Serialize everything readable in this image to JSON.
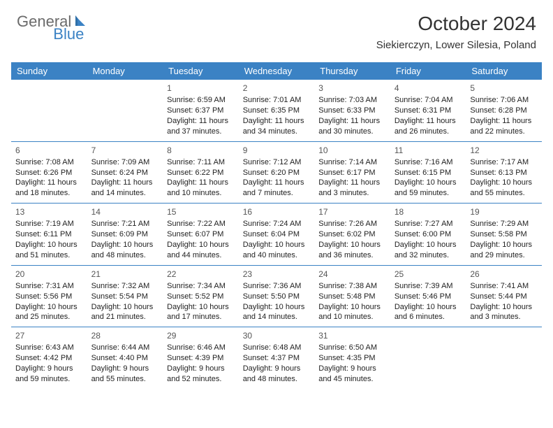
{
  "brand": {
    "part1": "General",
    "part2": "Blue"
  },
  "title": "October 2024",
  "location": "Siekierczyn, Lower Silesia, Poland",
  "colors": {
    "header_bg": "#3b82c4",
    "header_text": "#ffffff",
    "body_text": "#222222",
    "border": "#3b82c4",
    "logo_gray": "#6b6b6b",
    "logo_blue": "#3b82c4",
    "background": "#ffffff"
  },
  "fonts": {
    "base_family": "Arial",
    "title_size_pt": 21,
    "location_size_pt": 11,
    "dayhead_size_pt": 10,
    "cell_size_pt": 8
  },
  "day_headers": [
    "Sunday",
    "Monday",
    "Tuesday",
    "Wednesday",
    "Thursday",
    "Friday",
    "Saturday"
  ],
  "weeks": [
    [
      null,
      null,
      {
        "n": "1",
        "sunrise": "Sunrise: 6:59 AM",
        "sunset": "Sunset: 6:37 PM",
        "daylight": "Daylight: 11 hours and 37 minutes."
      },
      {
        "n": "2",
        "sunrise": "Sunrise: 7:01 AM",
        "sunset": "Sunset: 6:35 PM",
        "daylight": "Daylight: 11 hours and 34 minutes."
      },
      {
        "n": "3",
        "sunrise": "Sunrise: 7:03 AM",
        "sunset": "Sunset: 6:33 PM",
        "daylight": "Daylight: 11 hours and 30 minutes."
      },
      {
        "n": "4",
        "sunrise": "Sunrise: 7:04 AM",
        "sunset": "Sunset: 6:31 PM",
        "daylight": "Daylight: 11 hours and 26 minutes."
      },
      {
        "n": "5",
        "sunrise": "Sunrise: 7:06 AM",
        "sunset": "Sunset: 6:28 PM",
        "daylight": "Daylight: 11 hours and 22 minutes."
      }
    ],
    [
      {
        "n": "6",
        "sunrise": "Sunrise: 7:08 AM",
        "sunset": "Sunset: 6:26 PM",
        "daylight": "Daylight: 11 hours and 18 minutes."
      },
      {
        "n": "7",
        "sunrise": "Sunrise: 7:09 AM",
        "sunset": "Sunset: 6:24 PM",
        "daylight": "Daylight: 11 hours and 14 minutes."
      },
      {
        "n": "8",
        "sunrise": "Sunrise: 7:11 AM",
        "sunset": "Sunset: 6:22 PM",
        "daylight": "Daylight: 11 hours and 10 minutes."
      },
      {
        "n": "9",
        "sunrise": "Sunrise: 7:12 AM",
        "sunset": "Sunset: 6:20 PM",
        "daylight": "Daylight: 11 hours and 7 minutes."
      },
      {
        "n": "10",
        "sunrise": "Sunrise: 7:14 AM",
        "sunset": "Sunset: 6:17 PM",
        "daylight": "Daylight: 11 hours and 3 minutes."
      },
      {
        "n": "11",
        "sunrise": "Sunrise: 7:16 AM",
        "sunset": "Sunset: 6:15 PM",
        "daylight": "Daylight: 10 hours and 59 minutes."
      },
      {
        "n": "12",
        "sunrise": "Sunrise: 7:17 AM",
        "sunset": "Sunset: 6:13 PM",
        "daylight": "Daylight: 10 hours and 55 minutes."
      }
    ],
    [
      {
        "n": "13",
        "sunrise": "Sunrise: 7:19 AM",
        "sunset": "Sunset: 6:11 PM",
        "daylight": "Daylight: 10 hours and 51 minutes."
      },
      {
        "n": "14",
        "sunrise": "Sunrise: 7:21 AM",
        "sunset": "Sunset: 6:09 PM",
        "daylight": "Daylight: 10 hours and 48 minutes."
      },
      {
        "n": "15",
        "sunrise": "Sunrise: 7:22 AM",
        "sunset": "Sunset: 6:07 PM",
        "daylight": "Daylight: 10 hours and 44 minutes."
      },
      {
        "n": "16",
        "sunrise": "Sunrise: 7:24 AM",
        "sunset": "Sunset: 6:04 PM",
        "daylight": "Daylight: 10 hours and 40 minutes."
      },
      {
        "n": "17",
        "sunrise": "Sunrise: 7:26 AM",
        "sunset": "Sunset: 6:02 PM",
        "daylight": "Daylight: 10 hours and 36 minutes."
      },
      {
        "n": "18",
        "sunrise": "Sunrise: 7:27 AM",
        "sunset": "Sunset: 6:00 PM",
        "daylight": "Daylight: 10 hours and 32 minutes."
      },
      {
        "n": "19",
        "sunrise": "Sunrise: 7:29 AM",
        "sunset": "Sunset: 5:58 PM",
        "daylight": "Daylight: 10 hours and 29 minutes."
      }
    ],
    [
      {
        "n": "20",
        "sunrise": "Sunrise: 7:31 AM",
        "sunset": "Sunset: 5:56 PM",
        "daylight": "Daylight: 10 hours and 25 minutes."
      },
      {
        "n": "21",
        "sunrise": "Sunrise: 7:32 AM",
        "sunset": "Sunset: 5:54 PM",
        "daylight": "Daylight: 10 hours and 21 minutes."
      },
      {
        "n": "22",
        "sunrise": "Sunrise: 7:34 AM",
        "sunset": "Sunset: 5:52 PM",
        "daylight": "Daylight: 10 hours and 17 minutes."
      },
      {
        "n": "23",
        "sunrise": "Sunrise: 7:36 AM",
        "sunset": "Sunset: 5:50 PM",
        "daylight": "Daylight: 10 hours and 14 minutes."
      },
      {
        "n": "24",
        "sunrise": "Sunrise: 7:38 AM",
        "sunset": "Sunset: 5:48 PM",
        "daylight": "Daylight: 10 hours and 10 minutes."
      },
      {
        "n": "25",
        "sunrise": "Sunrise: 7:39 AM",
        "sunset": "Sunset: 5:46 PM",
        "daylight": "Daylight: 10 hours and 6 minutes."
      },
      {
        "n": "26",
        "sunrise": "Sunrise: 7:41 AM",
        "sunset": "Sunset: 5:44 PM",
        "daylight": "Daylight: 10 hours and 3 minutes."
      }
    ],
    [
      {
        "n": "27",
        "sunrise": "Sunrise: 6:43 AM",
        "sunset": "Sunset: 4:42 PM",
        "daylight": "Daylight: 9 hours and 59 minutes."
      },
      {
        "n": "28",
        "sunrise": "Sunrise: 6:44 AM",
        "sunset": "Sunset: 4:40 PM",
        "daylight": "Daylight: 9 hours and 55 minutes."
      },
      {
        "n": "29",
        "sunrise": "Sunrise: 6:46 AM",
        "sunset": "Sunset: 4:39 PM",
        "daylight": "Daylight: 9 hours and 52 minutes."
      },
      {
        "n": "30",
        "sunrise": "Sunrise: 6:48 AM",
        "sunset": "Sunset: 4:37 PM",
        "daylight": "Daylight: 9 hours and 48 minutes."
      },
      {
        "n": "31",
        "sunrise": "Sunrise: 6:50 AM",
        "sunset": "Sunset: 4:35 PM",
        "daylight": "Daylight: 9 hours and 45 minutes."
      },
      null,
      null
    ]
  ]
}
